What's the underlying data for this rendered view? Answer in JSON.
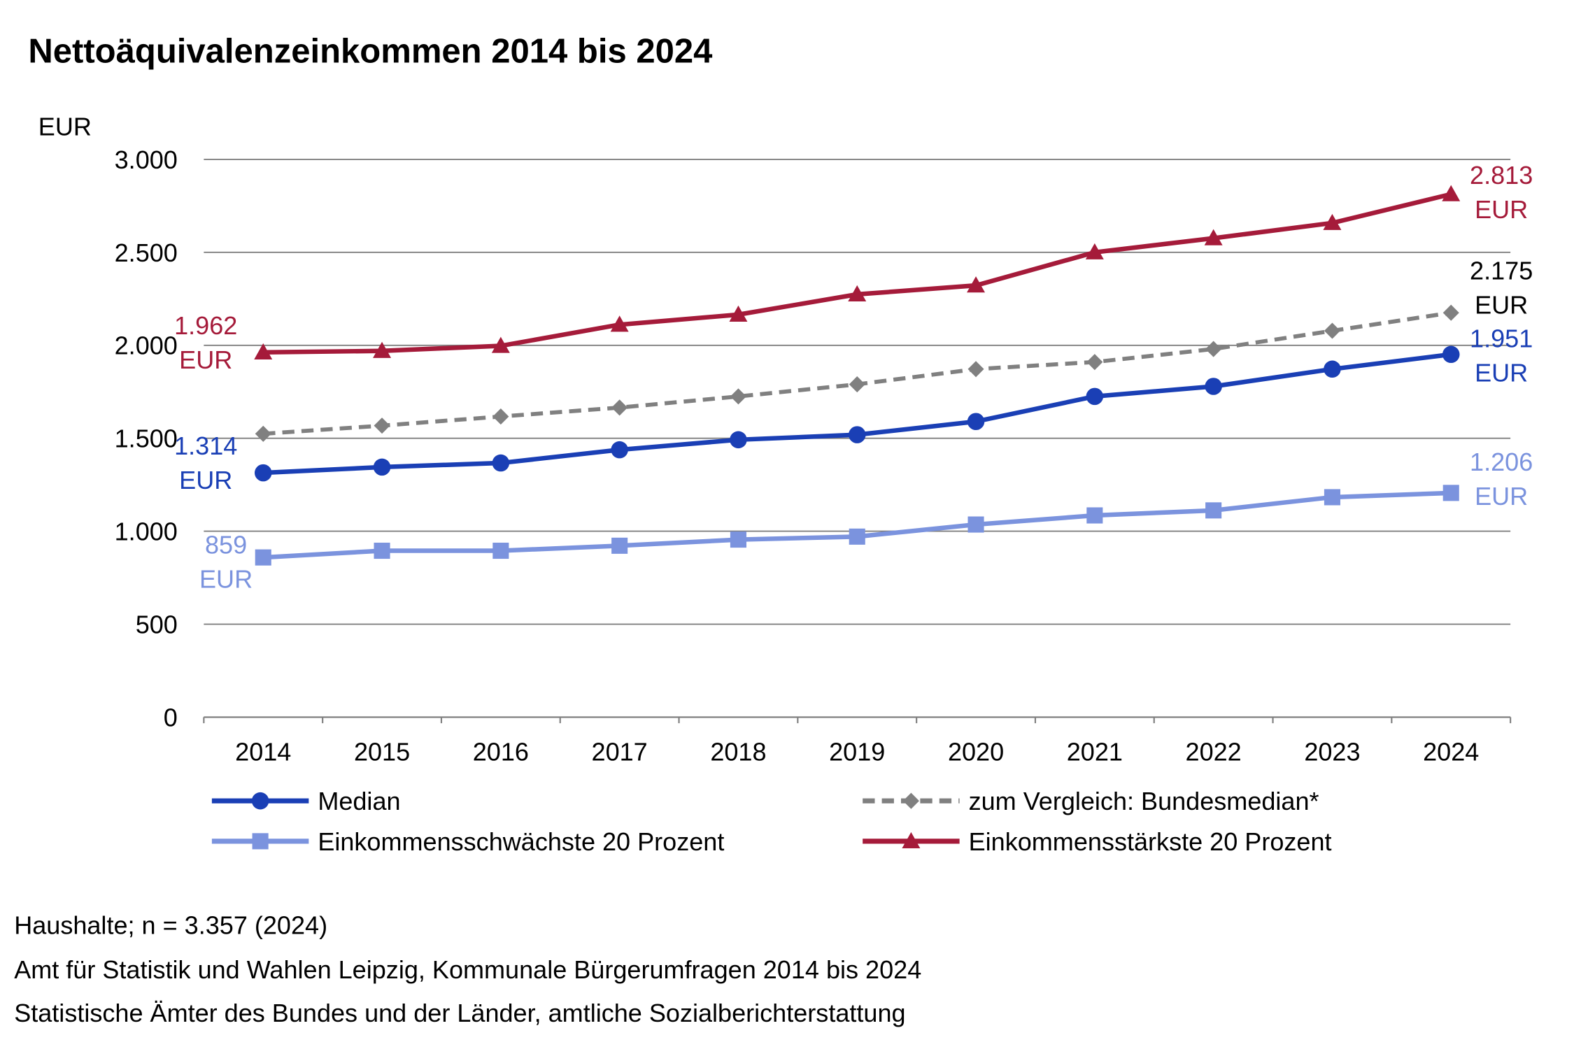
{
  "chart_data": {
    "type": "line",
    "title": "Nettoäquivalenzeinkommen 2014 bis 2024",
    "ylabel": "EUR",
    "xlabel": "",
    "ylim": [
      0,
      3000
    ],
    "yticks": [
      0,
      500,
      1000,
      1500,
      2000,
      2500,
      3000
    ],
    "ytick_labels": [
      "0",
      "500",
      "1.000",
      "1.500",
      "2.000",
      "2.500",
      "3.000"
    ],
    "grid": true,
    "legend_position": "bottom",
    "categories": [
      "2014",
      "2015",
      "2016",
      "2017",
      "2018",
      "2019",
      "2020",
      "2021",
      "2022",
      "2023",
      "2024"
    ],
    "series": [
      {
        "name": "Median",
        "color": "#1a3fb5",
        "marker": "circle",
        "dashed": false,
        "values": [
          1314,
          1345,
          1367,
          1438,
          1492,
          1519,
          1590,
          1725,
          1779,
          1872,
          1951
        ],
        "first_label": [
          "1.314",
          "EUR"
        ],
        "last_label": [
          "1.951",
          "EUR"
        ]
      },
      {
        "name": "zum Vergleich: Bundesmedian*",
        "color": "#808080",
        "marker": "diamond",
        "dashed": true,
        "values": [
          1524,
          1568,
          1617,
          1665,
          1725,
          1790,
          1872,
          1910,
          1980,
          2078,
          2175
        ],
        "first_label": null,
        "last_label": [
          "2.175",
          "EUR"
        ]
      },
      {
        "name": "Einkommensschwächste 20 Prozent",
        "color": "#7b93de",
        "marker": "square",
        "dashed": false,
        "values": [
          859,
          895,
          895,
          922,
          955,
          971,
          1036,
          1085,
          1112,
          1183,
          1206
        ],
        "first_label": [
          "859",
          "EUR"
        ],
        "last_label": [
          "1.206",
          "EUR"
        ]
      },
      {
        "name": "Einkommensstärkste 20 Prozent",
        "color": "#a51b3a",
        "marker": "triangle",
        "dashed": false,
        "values": [
          1962,
          1970,
          1997,
          2111,
          2165,
          2274,
          2322,
          2500,
          2576,
          2658,
          2813
        ],
        "first_label": [
          "1.962",
          "EUR"
        ],
        "last_label": [
          "2.813",
          "EUR"
        ]
      }
    ]
  },
  "footnotes": [
    "Haushalte; n = 3.357 (2024)",
    "Amt für Statistik und Wahlen Leipzig, Kommunale Bürgerumfragen 2014 bis 2024",
    "Statistische Ämter des Bundes und der Länder, amtliche Sozialberichterstattung"
  ]
}
